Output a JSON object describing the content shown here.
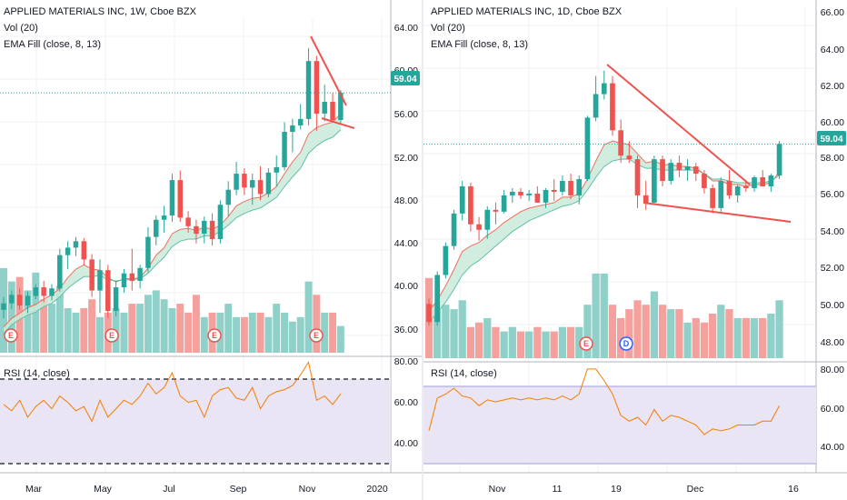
{
  "colors": {
    "up": "#26a69a",
    "down": "#ef5350",
    "vol_up": "#8fd0c8",
    "vol_down": "#f4a09c",
    "ema_fill": "#c8ead9",
    "ema8": "#ef6f5d",
    "ema13": "#62c0a5",
    "rsi_line": "#f57c00",
    "rsi_band": "#e9e5f4",
    "trend": "#ef5350",
    "last_line": "#26a69a",
    "axis_text": "#131722",
    "grid": "#eef0f3"
  },
  "left": {
    "title": "APPLIED MATERIALS INC, 1W, Cboe BZX",
    "vol_label": "Vol (20)",
    "ema_label": "EMA Fill (close, 8, 13)",
    "rsi_label": "RSI (14, close)",
    "price_ticks": [
      "64.00",
      "60.00",
      "56.00",
      "52.00",
      "48.00",
      "44.00",
      "40.00",
      "36.00"
    ],
    "rsi_ticks": [
      "80.00",
      "60.00",
      "40.00"
    ],
    "time_ticks": [
      "Mar",
      "May",
      "Jul",
      "Sep",
      "Nov",
      "2020"
    ],
    "last_price": "59.04",
    "event_markers": [
      "E",
      "E",
      "E",
      "E"
    ]
  },
  "right": {
    "title": "APPLIED MATERIALS INC, 1D, Cboe BZX",
    "vol_label": "Vol (20)",
    "ema_label": "EMA Fill (close, 8, 13)",
    "rsi_label": "RSI (14, close)",
    "price_ticks": [
      "66.00",
      "64.00",
      "62.00",
      "60.00",
      "58.00",
      "56.00",
      "54.00",
      "52.00",
      "50.00",
      "48.00"
    ],
    "rsi_ticks": [
      "80.00",
      "60.00",
      "40.00"
    ],
    "time_ticks": [
      "Nov",
      "11",
      "19",
      "Dec",
      "16"
    ],
    "last_price": "59.04",
    "event_markers": [
      "E",
      "D"
    ]
  },
  "chart_data": [
    {
      "type": "candlestick",
      "title": "APPLIED MATERIALS INC, 1W, Cboe BZX",
      "interval": "1W",
      "y_range": [
        34.8,
        66.0
      ],
      "last_price": 59.04,
      "ohlc": [
        [
          38.8,
          40.0,
          38.0,
          39.4
        ],
        [
          39.4,
          40.6,
          38.9,
          40.2
        ],
        [
          40.2,
          40.8,
          38.8,
          39.2
        ],
        [
          39.2,
          40.5,
          38.5,
          40.1
        ],
        [
          40.1,
          41.2,
          39.8,
          40.9
        ],
        [
          40.9,
          41.5,
          39.5,
          40.1
        ],
        [
          40.1,
          41.2,
          39.7,
          40.8
        ],
        [
          40.8,
          44.5,
          40.5,
          43.9
        ],
        [
          43.9,
          45.2,
          42.6,
          44.6
        ],
        [
          44.6,
          45.6,
          43.8,
          45.2
        ],
        [
          45.2,
          45.5,
          43.0,
          43.5
        ],
        [
          43.5,
          44.0,
          40.0,
          40.6
        ],
        [
          40.6,
          43.5,
          38.5,
          42.5
        ],
        [
          42.5,
          43.0,
          38.0,
          38.7
        ],
        [
          38.7,
          41.5,
          38.2,
          40.9
        ],
        [
          40.9,
          42.6,
          40.4,
          42.2
        ],
        [
          42.2,
          44.5,
          40.6,
          41.5
        ],
        [
          41.5,
          43.0,
          40.8,
          42.7
        ],
        [
          42.7,
          46.5,
          42.3,
          45.6
        ],
        [
          45.6,
          47.6,
          44.8,
          47.2
        ],
        [
          47.2,
          48.5,
          46.0,
          47.6
        ],
        [
          47.6,
          51.5,
          47.0,
          50.9
        ],
        [
          50.9,
          51.8,
          47.0,
          47.4
        ],
        [
          47.4,
          48.0,
          46.0,
          46.6
        ],
        [
          46.6,
          47.2,
          45.0,
          45.9
        ],
        [
          45.9,
          47.5,
          45.0,
          47.1
        ],
        [
          47.1,
          47.8,
          44.8,
          45.4
        ],
        [
          45.4,
          49.0,
          45.0,
          48.6
        ],
        [
          48.6,
          50.8,
          47.5,
          50.0
        ],
        [
          50.0,
          52.6,
          49.5,
          51.5
        ],
        [
          51.5,
          52.0,
          49.5,
          50.2
        ],
        [
          50.2,
          51.5,
          48.6,
          50.9
        ],
        [
          50.9,
          52.2,
          49.0,
          49.6
        ],
        [
          49.6,
          52.0,
          49.3,
          51.6
        ],
        [
          51.6,
          53.2,
          50.3,
          52.1
        ],
        [
          52.1,
          56.3,
          51.8,
          55.4
        ],
        [
          55.4,
          56.6,
          53.5,
          56.0
        ],
        [
          56.0,
          58.0,
          55.6,
          56.6
        ],
        [
          56.6,
          63.2,
          56.0,
          62.0
        ],
        [
          62.0,
          62.5,
          55.5,
          57.1
        ],
        [
          57.1,
          59.8,
          56.4,
          58.2
        ],
        [
          58.2,
          59.0,
          56.3,
          56.5
        ],
        [
          56.5,
          59.3,
          56.2,
          59.04
        ]
      ],
      "ema8_series": [
        37.2,
        38.0,
        38.5,
        39.0,
        39.3,
        39.8,
        40.2,
        40.8,
        41.8,
        42.6,
        43.0,
        42.6,
        42.5,
        41.8,
        41.4,
        41.7,
        41.7,
        41.8,
        42.7,
        43.9,
        44.6,
        45.9,
        46.3,
        46.4,
        46.2,
        46.5,
        46.3,
        46.7,
        47.5,
        48.5,
        48.9,
        49.2,
        49.3,
        49.7,
        50.3,
        51.5,
        52.6,
        53.5,
        55.2,
        55.8,
        56.1,
        56.3,
        57.1
      ],
      "ema13_series": [
        36.6,
        37.4,
        37.9,
        38.3,
        38.6,
        39.1,
        39.4,
        40.0,
        40.8,
        41.4,
        41.9,
        41.9,
        42.0,
        41.6,
        41.5,
        41.6,
        41.6,
        41.7,
        42.2,
        43.0,
        43.7,
        44.7,
        45.2,
        45.4,
        45.4,
        45.7,
        45.7,
        46.1,
        46.7,
        47.4,
        47.8,
        48.1,
        48.3,
        48.8,
        49.3,
        50.3,
        51.2,
        52.0,
        53.4,
        54.1,
        54.6,
        54.9,
        55.6
      ],
      "volume_relative": [
        0.95,
        0.8,
        0.85,
        0.7,
        0.9,
        0.6,
        0.55,
        0.75,
        0.5,
        0.45,
        0.5,
        0.6,
        0.4,
        0.45,
        0.5,
        0.45,
        0.55,
        0.55,
        0.65,
        0.7,
        0.6,
        0.5,
        0.55,
        0.45,
        0.65,
        0.4,
        0.45,
        0.45,
        0.55,
        0.4,
        0.4,
        0.45,
        0.45,
        0.4,
        0.55,
        0.45,
        0.35,
        0.4,
        0.8,
        0.65,
        0.45,
        0.45,
        0.3
      ],
      "rsi": [
        58,
        55,
        60,
        52,
        57,
        60,
        56,
        62,
        59,
        55,
        57,
        50,
        60,
        52,
        56,
        60,
        58,
        62,
        68,
        63,
        66,
        73,
        62,
        59,
        60,
        52,
        62,
        65,
        66,
        61,
        60,
        66,
        56,
        62,
        64,
        65,
        67,
        72,
        78,
        60,
        62,
        58,
        63
      ],
      "rsi_bands": [
        70,
        30
      ],
      "trendlines": "falling wedge"
    },
    {
      "type": "candlestick",
      "title": "APPLIED MATERIALS INC, 1D, Cboe BZX",
      "interval": "1D",
      "y_range": [
        47.2,
        66.6
      ],
      "last_price": 59.04,
      "ohlc": [
        [
          50.2,
          50.5,
          49.0,
          49.2
        ],
        [
          49.2,
          52.0,
          49.0,
          51.8
        ],
        [
          51.8,
          53.6,
          51.6,
          53.4
        ],
        [
          53.4,
          55.4,
          53.2,
          55.2
        ],
        [
          55.2,
          57.0,
          54.8,
          56.7
        ],
        [
          56.7,
          56.9,
          54.2,
          54.6
        ],
        [
          54.6,
          55.0,
          53.7,
          54.3
        ],
        [
          54.3,
          55.6,
          53.8,
          55.4
        ],
        [
          55.4,
          55.8,
          54.6,
          55.3
        ],
        [
          55.3,
          56.5,
          55.2,
          56.2
        ],
        [
          56.2,
          56.6,
          55.8,
          56.4
        ],
        [
          56.4,
          56.6,
          56.0,
          56.2
        ],
        [
          56.2,
          56.5,
          55.9,
          56.3
        ],
        [
          56.3,
          56.7,
          55.8,
          55.8
        ],
        [
          55.8,
          56.6,
          55.5,
          56.5
        ],
        [
          56.5,
          57.1,
          55.9,
          56.4
        ],
        [
          56.4,
          57.3,
          56.2,
          57.0
        ],
        [
          57.0,
          57.4,
          56.0,
          56.2
        ],
        [
          56.2,
          57.3,
          55.7,
          57.1
        ],
        [
          57.1,
          60.6,
          57.0,
          60.5
        ],
        [
          60.5,
          62.8,
          60.3,
          61.8
        ],
        [
          61.8,
          63.1,
          61.5,
          62.4
        ],
        [
          62.4,
          62.8,
          59.5,
          59.8
        ],
        [
          59.8,
          60.4,
          58.0,
          58.4
        ],
        [
          58.4,
          59.2,
          58.0,
          58.2
        ],
        [
          58.2,
          58.4,
          55.5,
          56.2
        ],
        [
          56.2,
          57.0,
          55.4,
          55.8
        ],
        [
          55.8,
          58.4,
          55.7,
          58.2
        ],
        [
          58.2,
          58.4,
          56.7,
          57.0
        ],
        [
          57.0,
          58.2,
          56.8,
          58.0
        ],
        [
          58.0,
          58.4,
          57.2,
          57.6
        ],
        [
          57.6,
          58.2,
          57.0,
          57.8
        ],
        [
          57.8,
          58.0,
          57.0,
          57.4
        ],
        [
          57.4,
          57.6,
          56.3,
          56.6
        ],
        [
          56.6,
          56.8,
          55.2,
          55.5
        ],
        [
          55.5,
          57.2,
          55.3,
          57.0
        ],
        [
          57.0,
          57.6,
          56.0,
          56.2
        ],
        [
          56.2,
          56.8,
          55.8,
          56.7
        ],
        [
          56.7,
          57.0,
          56.4,
          56.6
        ],
        [
          56.6,
          57.3,
          56.4,
          57.2
        ],
        [
          57.2,
          57.6,
          56.7,
          56.7
        ],
        [
          56.7,
          57.4,
          56.4,
          57.3
        ],
        [
          57.3,
          59.2,
          57.1,
          59.04
        ]
      ],
      "ema8_series": [
        49.8,
        50.4,
        51.2,
        52.1,
        53.1,
        53.4,
        53.6,
        54.0,
        54.3,
        54.7,
        55.0,
        55.3,
        55.5,
        55.6,
        55.7,
        55.8,
        56.1,
        56.1,
        56.3,
        57.1,
        58.1,
        59.0,
        59.2,
        59.1,
        59.0,
        58.5,
        58.0,
        58.1,
        57.9,
        57.9,
        57.8,
        57.8,
        57.7,
        57.4,
        57.0,
        57.0,
        56.8,
        56.8,
        56.7,
        56.8,
        56.8,
        56.9,
        57.5
      ],
      "ema13_series": [
        49.2,
        49.7,
        50.3,
        51.0,
        51.8,
        52.3,
        52.6,
        53.0,
        53.4,
        53.8,
        54.2,
        54.5,
        54.8,
        55.0,
        55.2,
        55.4,
        55.6,
        55.7,
        55.9,
        56.5,
        57.2,
        57.8,
        58.1,
        58.2,
        58.2,
        57.9,
        57.7,
        57.7,
        57.6,
        57.6,
        57.6,
        57.6,
        57.6,
        57.4,
        57.1,
        57.1,
        57.0,
        56.9,
        56.9,
        56.9,
        56.9,
        57.0,
        57.3
      ],
      "volume_relative": [
        0.9,
        0.6,
        0.6,
        0.55,
        0.65,
        0.35,
        0.4,
        0.45,
        0.35,
        0.3,
        0.35,
        0.3,
        0.3,
        0.35,
        0.3,
        0.3,
        0.35,
        0.35,
        0.35,
        0.6,
        0.95,
        0.95,
        0.6,
        0.45,
        0.55,
        0.65,
        0.6,
        0.75,
        0.6,
        0.55,
        0.55,
        0.4,
        0.45,
        0.4,
        0.5,
        0.6,
        0.55,
        0.45,
        0.45,
        0.45,
        0.45,
        0.5,
        0.65
      ],
      "rsi": [
        47,
        64,
        66,
        69,
        65,
        64,
        60,
        63,
        62,
        63,
        64,
        63,
        64,
        63,
        64,
        63,
        65,
        63,
        66,
        79,
        79,
        73,
        66,
        55,
        52,
        54,
        50,
        58,
        52,
        55,
        54,
        52,
        50,
        45,
        48,
        47,
        48,
        50,
        50,
        50,
        52,
        52,
        60
      ],
      "rsi_bands": [
        70,
        30
      ],
      "trendlines": "falling wedge"
    }
  ]
}
